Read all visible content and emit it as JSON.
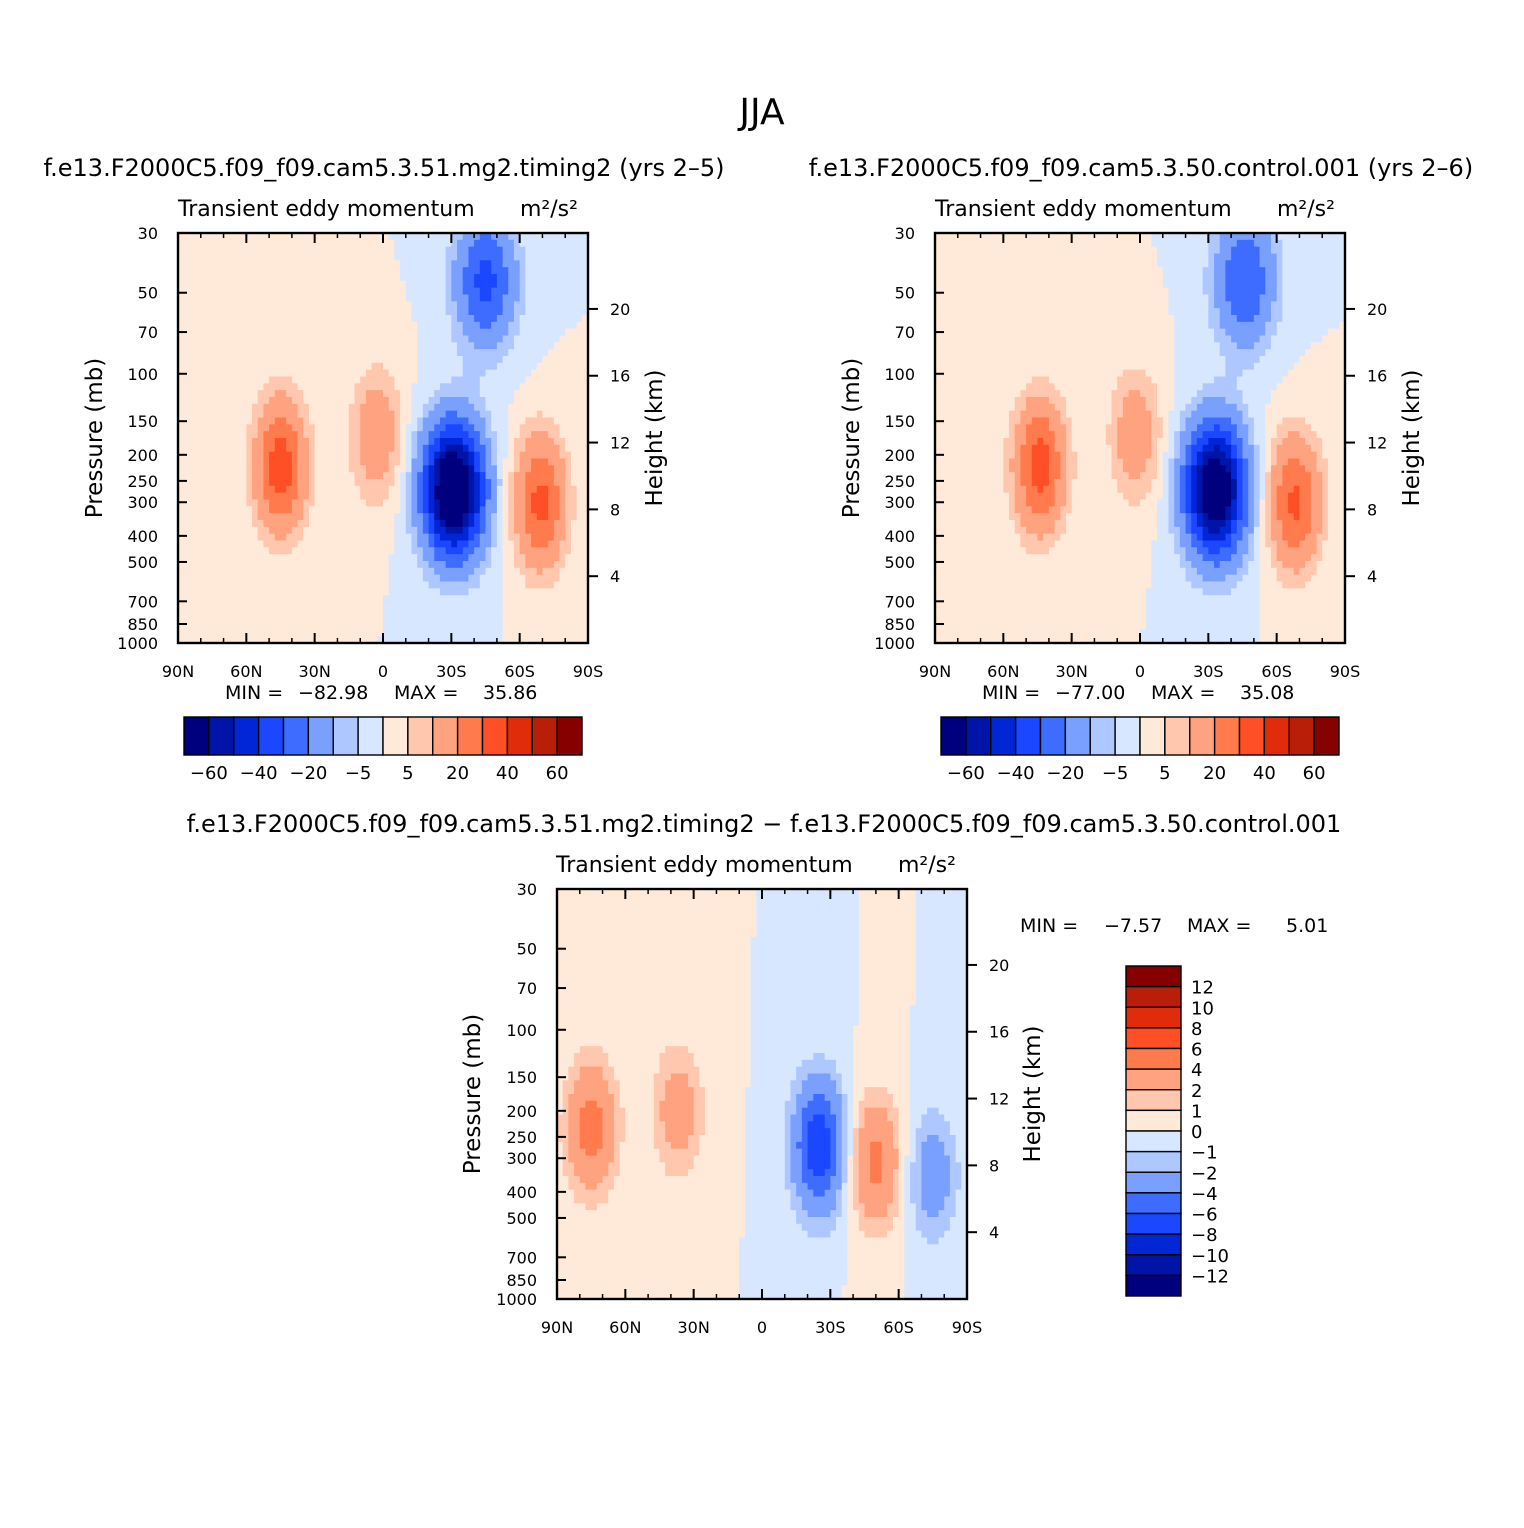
{
  "figure": {
    "title": "JJA"
  },
  "colors": {
    "neg": [
      "#00007f",
      "#0014a8",
      "#0026d6",
      "#1a47ff",
      "#3d6cff",
      "#7aa0ff",
      "#aec7ff",
      "#d6e7ff"
    ],
    "pos": [
      "#ffe9d9",
      "#ffc7ad",
      "#ffa27f",
      "#ff7b4d",
      "#ff4f26",
      "#e02c0a",
      "#b81e08",
      "#860000"
    ]
  },
  "chart_data": [
    {
      "type": "heatmap",
      "id": "panel1",
      "case_title": "f.e13.F2000C5.f09_f09.cam5.3.51.mg2.timing2 (yrs 2–5)",
      "variable": "Transient eddy momentum",
      "units": "m²/s²",
      "ylabel": "Pressure (mb)",
      "ylabel_right": "Height (km)",
      "x_ticks": [
        "90N",
        "60N",
        "30N",
        "0",
        "30S",
        "60S",
        "90S"
      ],
      "x_range": [
        90,
        -90
      ],
      "y_ticks": [
        "30",
        "50",
        "70",
        "100",
        "150",
        "200",
        "250",
        "300",
        "400",
        "500",
        "700",
        "850",
        "1000"
      ],
      "y_range": [
        1000,
        30
      ],
      "y_scale": "log",
      "height_ticks": [
        "20",
        "16",
        "12",
        "8",
        "4"
      ],
      "min_label": "MIN =",
      "min": "−82.98",
      "max_label": "MAX =",
      "max": "35.86",
      "colorbar_labels": [
        "−60",
        "−40",
        "−20",
        "−5",
        "5",
        "20",
        "40",
        "60"
      ],
      "contour_levels": [
        -60,
        -50,
        -40,
        -30,
        -20,
        -10,
        -5,
        0,
        5,
        10,
        20,
        30,
        40,
        50,
        60
      ],
      "centers": [
        {
          "lat": 45,
          "p": 220,
          "value": 36
        },
        {
          "lat": 3,
          "p": 170,
          "value": 17
        },
        {
          "lat": -31,
          "p": 270,
          "value": -83
        },
        {
          "lat": -69,
          "p": 300,
          "value": 33
        },
        {
          "lat": -45,
          "p": 45,
          "value": -33
        }
      ]
    },
    {
      "type": "heatmap",
      "id": "panel2",
      "case_title": "f.e13.F2000C5.f09_f09.cam5.3.50.control.001 (yrs 2–6)",
      "variable": "Transient eddy momentum",
      "units": "m²/s²",
      "ylabel": "Pressure (mb)",
      "ylabel_right": "Height (km)",
      "x_ticks": [
        "90N",
        "60N",
        "30N",
        "0",
        "30S",
        "60S",
        "90S"
      ],
      "x_range": [
        90,
        -90
      ],
      "y_ticks": [
        "30",
        "50",
        "70",
        "100",
        "150",
        "200",
        "250",
        "300",
        "400",
        "500",
        "700",
        "850",
        "1000"
      ],
      "y_range": [
        1000,
        30
      ],
      "y_scale": "log",
      "height_ticks": [
        "20",
        "16",
        "12",
        "8",
        "4"
      ],
      "min_label": "MIN =",
      "min": "−77.00",
      "max_label": "MAX =",
      "max": "35.08",
      "colorbar_labels": [
        "−60",
        "−40",
        "−20",
        "−5",
        "5",
        "20",
        "40",
        "60"
      ],
      "contour_levels": [
        -60,
        -50,
        -40,
        -30,
        -20,
        -10,
        -5,
        0,
        5,
        10,
        20,
        30,
        40,
        50,
        60
      ],
      "centers": [
        {
          "lat": 44,
          "p": 220,
          "value": 35
        },
        {
          "lat": 2,
          "p": 170,
          "value": 16
        },
        {
          "lat": -33,
          "p": 270,
          "value": -77
        },
        {
          "lat": -68,
          "p": 300,
          "value": 32
        },
        {
          "lat": -46,
          "p": 45,
          "value": -30
        }
      ]
    },
    {
      "type": "heatmap",
      "id": "panel3",
      "case_title": "f.e13.F2000C5.f09_f09.cam5.3.51.mg2.timing2 − f.e13.F2000C5.f09_f09.cam5.3.50.control.001",
      "variable": "Transient eddy momentum",
      "units": "m²/s²",
      "ylabel": "Pressure (mb)",
      "ylabel_right": "Height (km)",
      "x_ticks": [
        "90N",
        "60N",
        "30N",
        "0",
        "30S",
        "60S",
        "90S"
      ],
      "x_range": [
        90,
        -90
      ],
      "y_ticks": [
        "30",
        "50",
        "70",
        "100",
        "150",
        "200",
        "250",
        "300",
        "400",
        "500",
        "700",
        "850",
        "1000"
      ],
      "y_range": [
        1000,
        30
      ],
      "y_scale": "log",
      "height_ticks": [
        "20",
        "16",
        "12",
        "8",
        "4"
      ],
      "min_label": "MIN =",
      "min": "−7.57",
      "max_label": "MAX =",
      "max": "5.01",
      "colorbar_labels": [
        "12",
        "10",
        "8",
        "6",
        "4",
        "2",
        "1",
        "0",
        "−1",
        "−2",
        "−4",
        "−6",
        "−8",
        "−10",
        "−12"
      ],
      "contour_levels": [
        -12,
        -10,
        -8,
        -6,
        -4,
        -2,
        -1,
        0,
        1,
        2,
        4,
        6,
        8,
        10,
        12
      ],
      "centers": [
        {
          "lat": 75,
          "p": 230,
          "value": 5
        },
        {
          "lat": 37,
          "p": 200,
          "value": 3
        },
        {
          "lat": -25,
          "p": 270,
          "value": -7.6
        },
        {
          "lat": -50,
          "p": 310,
          "value": 4.5
        },
        {
          "lat": -75,
          "p": 350,
          "value": -3
        }
      ]
    }
  ]
}
